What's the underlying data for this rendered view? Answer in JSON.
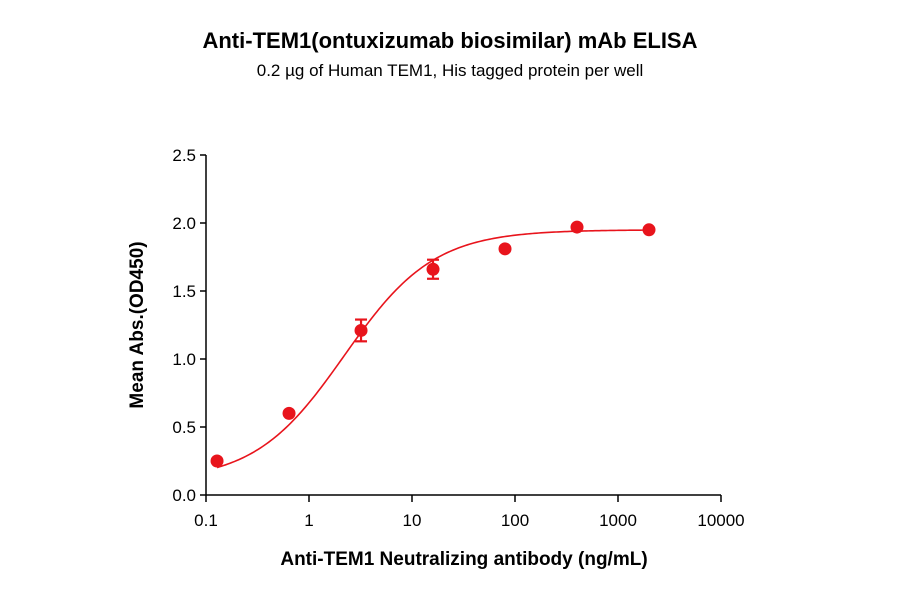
{
  "chart_data": {
    "type": "scatter",
    "title": "Anti-TEM1(ontuxizumab biosimilar) mAb ELISA",
    "subtitle": "0.2 µg of Human TEM1, His tagged protein per well",
    "xlabel": "Anti-TEM1 Neutralizing antibody (ng/mL)",
    "ylabel": "Mean Abs.(OD450)",
    "xscale": "log",
    "xlim": [
      0.1,
      10000
    ],
    "ylim": [
      0.0,
      2.5
    ],
    "x_ticks": [
      {
        "value": 0.1,
        "label": "0.1"
      },
      {
        "value": 1,
        "label": "1"
      },
      {
        "value": 10,
        "label": "10"
      },
      {
        "value": 100,
        "label": "100"
      },
      {
        "value": 1000,
        "label": "1000"
      },
      {
        "value": 10000,
        "label": "10000"
      }
    ],
    "y_ticks": [
      {
        "value": 0.0,
        "label": "0.0"
      },
      {
        "value": 0.5,
        "label": "0.5"
      },
      {
        "value": 1.0,
        "label": "1.0"
      },
      {
        "value": 1.5,
        "label": "1.5"
      },
      {
        "value": 2.0,
        "label": "2.0"
      },
      {
        "value": 2.5,
        "label": "2.5"
      }
    ],
    "grid": false,
    "color": "#e8141c",
    "series": [
      {
        "points": [
          {
            "x": 0.128,
            "y": 0.25,
            "err": 0.01
          },
          {
            "x": 0.64,
            "y": 0.6,
            "err": 0.01
          },
          {
            "x": 3.2,
            "y": 1.21,
            "err": 0.08
          },
          {
            "x": 16,
            "y": 1.66,
            "err": 0.07
          },
          {
            "x": 80,
            "y": 1.81,
            "err": 0.02
          },
          {
            "x": 400,
            "y": 1.97,
            "err": 0.02
          },
          {
            "x": 2000,
            "y": 1.95,
            "err": 0.02
          }
        ],
        "fit": {
          "model": "4PL",
          "bottom": 0.1,
          "top": 1.95,
          "ec50": 2.2,
          "hill": 1.0
        }
      }
    ]
  }
}
